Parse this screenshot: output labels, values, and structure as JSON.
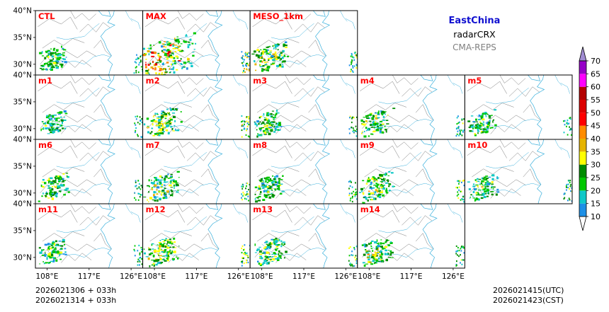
{
  "title": {
    "region": "EastChina",
    "variable": "radarCRX",
    "source": "CMA-REPS"
  },
  "footer": {
    "init_utc": "2026021306  +  033h",
    "init_cst": "2026021314  +  033h",
    "valid_utc": "2026021415(UTC)",
    "valid_cst": "2026021423(CST)"
  },
  "chart_data": {
    "type": "heatmap",
    "description": "Composite radar reflectivity (dBZ) ensemble postage-stamp maps",
    "panels": [
      {
        "label": "CTL",
        "row": 0,
        "col": 0,
        "intensity": 0.35
      },
      {
        "label": "MAX",
        "row": 0,
        "col": 1,
        "intensity": 1.0
      },
      {
        "label": "MESO_1km",
        "row": 0,
        "col": 2,
        "intensity": 0.55
      },
      {
        "label": "m1",
        "row": 1,
        "col": 0,
        "intensity": 0.3
      },
      {
        "label": "m2",
        "row": 1,
        "col": 1,
        "intensity": 0.55
      },
      {
        "label": "m3",
        "row": 1,
        "col": 2,
        "intensity": 0.4
      },
      {
        "label": "m4",
        "row": 1,
        "col": 3,
        "intensity": 0.45
      },
      {
        "label": "m5",
        "row": 1,
        "col": 4,
        "intensity": 0.35
      },
      {
        "label": "m6",
        "row": 2,
        "col": 0,
        "intensity": 0.4
      },
      {
        "label": "m7",
        "row": 2,
        "col": 1,
        "intensity": 0.5
      },
      {
        "label": "m8",
        "row": 2,
        "col": 2,
        "intensity": 0.4
      },
      {
        "label": "m9",
        "row": 2,
        "col": 3,
        "intensity": 0.5
      },
      {
        "label": "m10",
        "row": 2,
        "col": 4,
        "intensity": 0.4
      },
      {
        "label": "m11",
        "row": 3,
        "col": 0,
        "intensity": 0.35
      },
      {
        "label": "m12",
        "row": 3,
        "col": 1,
        "intensity": 0.5
      },
      {
        "label": "m13",
        "row": 3,
        "col": 2,
        "intensity": 0.45
      },
      {
        "label": "m14",
        "row": 3,
        "col": 3,
        "intensity": 0.5
      }
    ],
    "lat_ticks": [
      "40°N",
      "35°N",
      "30°N"
    ],
    "lat_values": [
      40,
      35,
      30
    ],
    "lon_ticks": [
      "108°E",
      "117°E",
      "126°E"
    ],
    "lon_values": [
      108,
      117,
      126
    ],
    "lat_range": [
      28,
      40
    ],
    "lon_range": [
      105.5,
      128.5
    ],
    "colorbar": {
      "levels": [
        "10",
        "15",
        "20",
        "25",
        "30",
        "35",
        "40",
        "45",
        "50",
        "55",
        "60",
        "65",
        "70"
      ],
      "colors": [
        "#1e90e6",
        "#10c8c8",
        "#00c800",
        "#008c00",
        "#ffff00",
        "#e6b400",
        "#ff8c00",
        "#ff0000",
        "#dc0000",
        "#b40000",
        "#ff00ff",
        "#9600c8",
        "#a08cd2"
      ],
      "under_color": "#ffffff",
      "over_color": "#a08cd2"
    }
  }
}
